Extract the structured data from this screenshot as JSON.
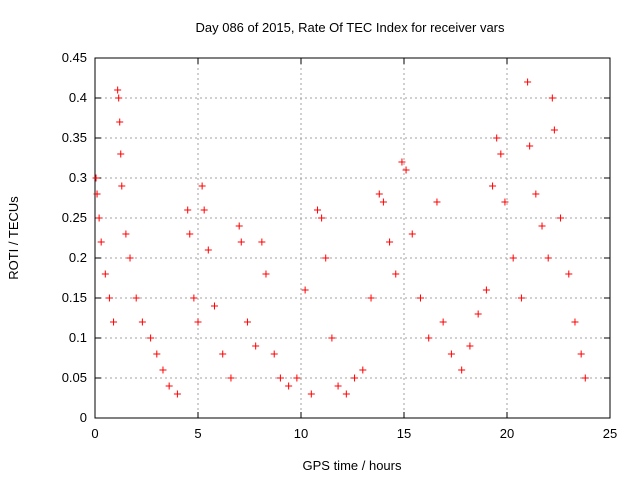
{
  "chart_data": {
    "type": "scatter",
    "title": "Day 086 of 2015, Rate Of TEC Index for receiver vars",
    "xlabel": "GPS time / hours",
    "ylabel": "ROTI / TECUs",
    "xlim": [
      0,
      25
    ],
    "ylim": [
      0,
      0.45
    ],
    "xticks": [
      0,
      5,
      10,
      15,
      20,
      25
    ],
    "yticks": [
      0,
      0.05,
      0.1,
      0.15,
      0.2,
      0.25,
      0.3,
      0.35,
      0.4,
      0.45
    ],
    "xtick_labels": [
      "0",
      "5",
      "10",
      "15",
      "20",
      "25"
    ],
    "ytick_labels": [
      "0",
      "0.05",
      "0.1",
      "0.15",
      "0.2",
      "0.25",
      "0.3",
      "0.35",
      "0.4",
      "0.45"
    ],
    "grid": true,
    "marker": "+",
    "color": "#ff0000",
    "series": [
      {
        "points": [
          [
            0.05,
            0.3
          ],
          [
            0.1,
            0.28
          ],
          [
            0.2,
            0.25
          ],
          [
            0.3,
            0.22
          ],
          [
            0.5,
            0.18
          ],
          [
            0.7,
            0.15
          ],
          [
            0.9,
            0.12
          ],
          [
            1.1,
            0.41
          ],
          [
            1.15,
            0.4
          ],
          [
            1.2,
            0.37
          ],
          [
            1.25,
            0.33
          ],
          [
            1.3,
            0.29
          ],
          [
            1.5,
            0.23
          ],
          [
            1.7,
            0.2
          ],
          [
            2.0,
            0.15
          ],
          [
            2.3,
            0.12
          ],
          [
            2.7,
            0.1
          ],
          [
            3.0,
            0.08
          ],
          [
            3.3,
            0.06
          ],
          [
            3.6,
            0.04
          ],
          [
            4.0,
            0.03
          ],
          [
            4.5,
            0.26
          ],
          [
            4.6,
            0.23
          ],
          [
            4.8,
            0.15
          ],
          [
            5.0,
            0.12
          ],
          [
            5.2,
            0.29
          ],
          [
            5.3,
            0.26
          ],
          [
            5.5,
            0.21
          ],
          [
            5.8,
            0.14
          ],
          [
            6.2,
            0.08
          ],
          [
            6.6,
            0.05
          ],
          [
            7.0,
            0.24
          ],
          [
            7.1,
            0.22
          ],
          [
            7.4,
            0.12
          ],
          [
            7.8,
            0.09
          ],
          [
            8.1,
            0.22
          ],
          [
            8.3,
            0.18
          ],
          [
            8.7,
            0.08
          ],
          [
            9.0,
            0.05
          ],
          [
            9.4,
            0.04
          ],
          [
            9.8,
            0.05
          ],
          [
            10.2,
            0.16
          ],
          [
            10.5,
            0.03
          ],
          [
            10.8,
            0.26
          ],
          [
            11.0,
            0.25
          ],
          [
            11.2,
            0.2
          ],
          [
            11.5,
            0.1
          ],
          [
            11.8,
            0.04
          ],
          [
            12.2,
            0.03
          ],
          [
            12.6,
            0.05
          ],
          [
            13.0,
            0.06
          ],
          [
            13.4,
            0.15
          ],
          [
            13.8,
            0.28
          ],
          [
            14.0,
            0.27
          ],
          [
            14.3,
            0.22
          ],
          [
            14.6,
            0.18
          ],
          [
            14.9,
            0.32
          ],
          [
            15.1,
            0.31
          ],
          [
            15.4,
            0.23
          ],
          [
            15.8,
            0.15
          ],
          [
            16.2,
            0.1
          ],
          [
            16.6,
            0.27
          ],
          [
            16.9,
            0.12
          ],
          [
            17.3,
            0.08
          ],
          [
            17.8,
            0.06
          ],
          [
            18.2,
            0.09
          ],
          [
            18.6,
            0.13
          ],
          [
            19.0,
            0.16
          ],
          [
            19.3,
            0.29
          ],
          [
            19.5,
            0.35
          ],
          [
            19.7,
            0.33
          ],
          [
            19.9,
            0.27
          ],
          [
            20.3,
            0.2
          ],
          [
            20.7,
            0.15
          ],
          [
            21.0,
            0.42
          ],
          [
            21.1,
            0.34
          ],
          [
            21.4,
            0.28
          ],
          [
            21.7,
            0.24
          ],
          [
            22.0,
            0.2
          ],
          [
            22.2,
            0.4
          ],
          [
            22.3,
            0.36
          ],
          [
            22.6,
            0.25
          ],
          [
            23.0,
            0.18
          ],
          [
            23.3,
            0.12
          ],
          [
            23.6,
            0.08
          ],
          [
            23.8,
            0.05
          ]
        ]
      }
    ]
  }
}
